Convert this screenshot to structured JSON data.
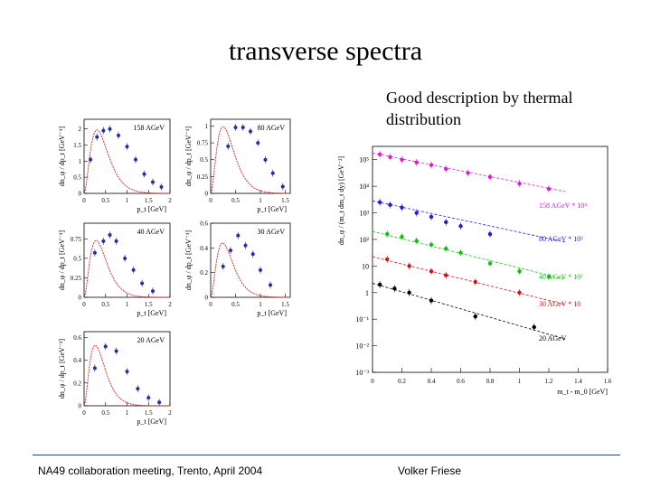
{
  "slide": {
    "title": "transverse spectra",
    "description_lines": [
      "Good description by thermal",
      "distribution"
    ],
    "footer_left": "NA49 collaboration meeting, Trento, April 2004",
    "footer_right": "Volker Friese"
  },
  "colors": {
    "data_points": "#1f2fb0",
    "fit_curve": "#d42020",
    "footer_rule": "#1f3f8f",
    "series_158": "#d020d0",
    "series_80": "#1f1fd0",
    "series_40": "#10c010",
    "series_30": "#d01010",
    "series_20": "#000000"
  },
  "chart_data": [
    {
      "type": "scatter",
      "title": "158 AGeV",
      "xlabel": "p_t [GeV]",
      "ylabel": "dn_φ / dp_t [GeV⁻¹]",
      "xlim": [
        0,
        2
      ],
      "ylim": [
        0,
        2.3
      ],
      "xticks": [
        0,
        0.5,
        1,
        1.5,
        2
      ],
      "xtick_labels": [
        "0",
        "0.5",
        "1",
        "1.5",
        "2"
      ],
      "yticks": [
        0,
        0.5,
        1,
        1.5,
        2
      ],
      "ytick_labels": [
        "0",
        "0.5",
        "1",
        "1.5",
        "2"
      ],
      "x": [
        0.15,
        0.3,
        0.45,
        0.6,
        0.8,
        1.0,
        1.2,
        1.4,
        1.6,
        1.8
      ],
      "y": [
        1.05,
        1.75,
        1.95,
        2.0,
        1.8,
        1.45,
        1.05,
        0.6,
        0.35,
        0.2
      ],
      "fit": {
        "T": 0.3,
        "peak": 1.97
      }
    },
    {
      "type": "scatter",
      "title": "80 AGeV",
      "xlabel": "p_t [GeV]",
      "ylabel": "dn_φ / dp_t [GeV⁻¹]",
      "xlim": [
        0,
        1.6
      ],
      "ylim": [
        0,
        1.1
      ],
      "xticks": [
        0,
        0.5,
        1,
        1.5
      ],
      "xtick_labels": [
        "0",
        "0.5",
        "1",
        "1.5"
      ],
      "yticks": [
        0,
        0.25,
        0.5,
        0.75,
        1
      ],
      "ytick_labels": [
        "0",
        "0.25",
        "0.5",
        "0.75",
        "1"
      ],
      "x": [
        0.35,
        0.5,
        0.65,
        0.8,
        0.95,
        1.1,
        1.25,
        1.45
      ],
      "y": [
        0.7,
        0.98,
        0.98,
        0.92,
        0.75,
        0.5,
        0.3,
        0.1
      ],
      "fit": {
        "T": 0.25,
        "peak": 0.99
      }
    },
    {
      "type": "scatter",
      "title": "40 AGeV",
      "xlabel": "p_t [GeV]",
      "ylabel": "dn_φ / dp_t [GeV⁻¹]",
      "xlim": [
        0,
        2
      ],
      "ylim": [
        0,
        0.95
      ],
      "xticks": [
        0,
        0.5,
        1,
        1.5,
        2
      ],
      "xtick_labels": [
        "0",
        "0.5",
        "1",
        "1.5",
        "2"
      ],
      "yticks": [
        0,
        0.25,
        0.5,
        0.75
      ],
      "ytick_labels": [
        "0",
        "0.25",
        "0.5",
        "0.75"
      ],
      "x": [
        0.25,
        0.45,
        0.6,
        0.75,
        0.95,
        1.15,
        1.35,
        1.6
      ],
      "y": [
        0.57,
        0.72,
        0.8,
        0.72,
        0.5,
        0.35,
        0.18,
        0.08
      ],
      "fit": {
        "T": 0.28,
        "peak": 0.73
      }
    },
    {
      "type": "scatter",
      "title": "30 AGeV",
      "xlabel": "p_t [GeV]",
      "ylabel": "dn_φ / dp_t [GeV⁻¹]",
      "xlim": [
        0,
        1.6
      ],
      "ylim": [
        0,
        0.6
      ],
      "xticks": [
        0,
        0.5,
        1,
        1.5
      ],
      "xtick_labels": [
        "0",
        "0.5",
        "1",
        "1.5"
      ],
      "yticks": [
        0,
        0.2,
        0.4,
        0.6
      ],
      "ytick_labels": [
        "0",
        "0.2",
        "0.4",
        "0.6"
      ],
      "x": [
        0.25,
        0.4,
        0.55,
        0.7,
        0.85,
        1.0,
        1.2
      ],
      "y": [
        0.25,
        0.38,
        0.5,
        0.42,
        0.35,
        0.22,
        0.1
      ],
      "fit": {
        "T": 0.24,
        "peak": 0.44
      }
    },
    {
      "type": "scatter",
      "title": "20 AGeV",
      "xlabel": "p_t [GeV]",
      "ylabel": "dn_φ / dp_t [GeV⁻¹]",
      "xlim": [
        0,
        2
      ],
      "ylim": [
        0,
        0.65
      ],
      "xticks": [
        0,
        0.5,
        1,
        1.5,
        2
      ],
      "xtick_labels": [
        "0",
        "0.5",
        "1",
        "1.5",
        "2"
      ],
      "yticks": [
        0,
        0.2,
        0.4,
        0.6
      ],
      "ytick_labels": [
        "0",
        "0.2",
        "0.4",
        "0.6"
      ],
      "x": [
        0.25,
        0.5,
        0.75,
        1.0,
        1.25,
        1.5,
        1.75
      ],
      "y": [
        0.33,
        0.52,
        0.48,
        0.3,
        0.15,
        0.07,
        0.03
      ],
      "fit": {
        "T": 0.26,
        "peak": 0.53
      }
    },
    {
      "type": "scatter",
      "scale": "log",
      "title": "",
      "xlabel": "m_t - m_0 [GeV]",
      "ylabel": "dn_φ / (m_t dm_t dy) [GeV⁻²]",
      "xlim": [
        0,
        1.6
      ],
      "ylim_log10": [
        -3,
        5.5
      ],
      "xticks": [
        0,
        0.2,
        0.4,
        0.6,
        0.8,
        1,
        1.2,
        1.4,
        1.6
      ],
      "xtick_labels": [
        "0",
        "0.2",
        "0.4",
        "0.6",
        "0.8",
        "1",
        "1.2",
        "1.4",
        "1.6"
      ],
      "yticks_log10": [
        -3,
        -2,
        -1,
        0,
        1,
        2,
        3,
        4,
        5
      ],
      "ytick_labels": [
        "10⁻³",
        "10⁻²",
        "10⁻¹",
        "1",
        "10",
        "10²",
        "10³",
        "10⁴",
        "10⁵"
      ],
      "series": [
        {
          "name": "158 AGeV * 10⁴",
          "color_key": "series_158",
          "x": [
            0.05,
            0.12,
            0.2,
            0.3,
            0.4,
            0.5,
            0.65,
            0.8,
            1.0,
            1.2
          ],
          "y_log10": [
            5.2,
            5.1,
            5.0,
            4.9,
            4.8,
            4.65,
            4.5,
            4.35,
            4.1,
            3.9
          ],
          "fit_log10": [
            5.25,
            3.8
          ]
        },
        {
          "name": "80 AGeV * 10³",
          "color_key": "series_80",
          "x": [
            0.05,
            0.12,
            0.2,
            0.3,
            0.4,
            0.5,
            0.6,
            0.8
          ],
          "y_log10": [
            3.4,
            3.3,
            3.2,
            3.0,
            2.85,
            2.65,
            2.5,
            2.2
          ],
          "fit_log10": [
            3.45,
            1.9
          ]
        },
        {
          "name": "40 AGeV * 10²",
          "color_key": "series_40",
          "x": [
            0.1,
            0.2,
            0.3,
            0.4,
            0.5,
            0.6,
            0.8,
            1.0,
            1.2
          ],
          "y_log10": [
            2.2,
            2.1,
            1.95,
            1.8,
            1.65,
            1.5,
            1.1,
            0.8,
            0.6
          ],
          "fit_log10": [
            2.3,
            0.5
          ]
        },
        {
          "name": "30 AGeV * 10",
          "color_key": "series_30",
          "x": [
            0.1,
            0.25,
            0.4,
            0.5,
            0.7,
            1.0
          ],
          "y_log10": [
            1.25,
            1.0,
            0.8,
            0.65,
            0.4,
            0.0
          ],
          "fit_log10": [
            1.35,
            -0.45
          ]
        },
        {
          "name": "20 AGeV",
          "color_key": "series_20",
          "x": [
            0.05,
            0.15,
            0.25,
            0.4,
            0.7,
            1.1
          ],
          "y_log10": [
            0.3,
            0.15,
            0.0,
            -0.3,
            -0.9,
            -1.3
          ],
          "fit_log10": [
            0.35,
            -1.75
          ]
        }
      ]
    }
  ]
}
